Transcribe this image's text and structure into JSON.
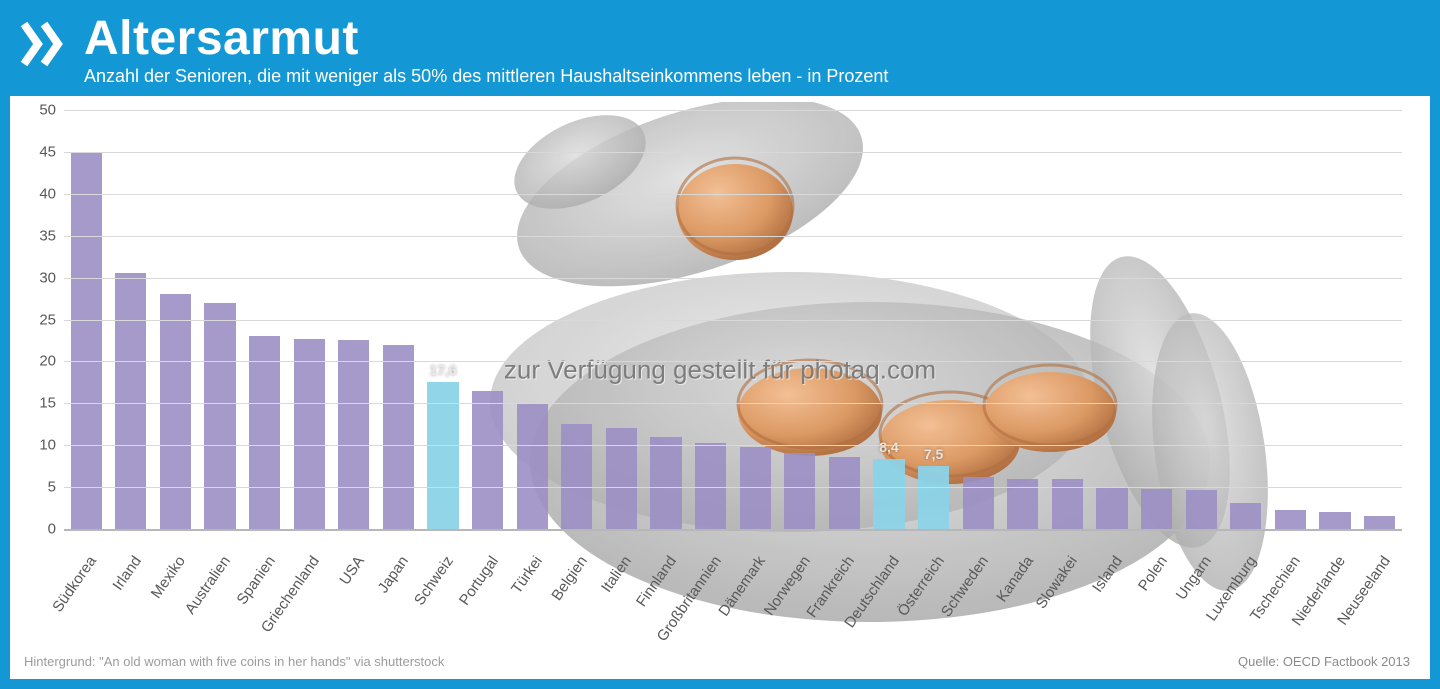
{
  "header": {
    "title": "Altersarmut",
    "subtitle": "Anzahl der Senioren, die mit weniger als 50% des mittleren Haushaltseinkommens leben - in Prozent",
    "header_bg": "#1498d5",
    "header_text_color": "#ffffff",
    "title_fontsize": 48,
    "subtitle_fontsize": 18
  },
  "logo": {
    "chevron_color": "#ffffff",
    "bg_color": "#1498d5"
  },
  "chart": {
    "type": "bar",
    "ylim": [
      0,
      50
    ],
    "ytick_step": 5,
    "yticks": [
      0,
      5,
      10,
      15,
      20,
      25,
      30,
      35,
      40,
      45,
      50
    ],
    "grid_color": "#d9d9d9",
    "baseline_color": "#b7b7b7",
    "axis_label_color": "#595959",
    "axis_label_fontsize": 15,
    "bar_width_ratio": 0.7,
    "default_bar_color": "#9b8fc4",
    "highlight_bar_color": "#8cd3e8",
    "background_color": "#ffffff",
    "value_label_color": "#e8e8e8",
    "value_label_fontsize": 14,
    "x_label_rotation_deg": -55,
    "categories": [
      "Südkorea",
      "Irland",
      "Mexiko",
      "Australien",
      "Spanien",
      "Griechenland",
      "USA",
      "Japan",
      "Schweiz",
      "Portugal",
      "Türkei",
      "Belgien",
      "Italien",
      "Finnland",
      "Großbritannien",
      "Dänemark",
      "Norwegen",
      "Frankreich",
      "Deutschland",
      "Österreich",
      "Schweden",
      "Kanada",
      "Slowakei",
      "Island",
      "Polen",
      "Ungarn",
      "Luxemburg",
      "Tschechien",
      "Niederlande",
      "Neuseeland"
    ],
    "values": [
      45.0,
      30.5,
      28.0,
      27.0,
      23.0,
      22.7,
      22.5,
      22.0,
      17.6,
      16.5,
      15.0,
      12.5,
      12.0,
      11.0,
      10.3,
      9.8,
      9.1,
      8.6,
      8.4,
      7.5,
      6.2,
      6.0,
      6.0,
      5.0,
      4.8,
      4.6,
      3.1,
      2.3,
      2.0,
      1.5
    ],
    "highlight_indices": [
      8,
      18,
      19
    ],
    "value_labels": {
      "8": "17,6",
      "18": "8,4",
      "19": "7,5"
    }
  },
  "watermark": {
    "text": "zur Verfügung gestellt für photaq.com",
    "color": "#7d7d7d",
    "fontsize": 26
  },
  "footer": {
    "left": "Hintergrund: \"An old woman with five coins in her hands\" via shutterstock",
    "right": "Quelle: OECD Factbook 2013",
    "color_left": "#9c9c9c",
    "color_right": "#8a8a8a",
    "fontsize": 13
  },
  "bg_illustration": {
    "description": "Elderly hands holding five bronze coins, desaturated grayscale with copper-tinted coins",
    "coin_color": "#d99055",
    "coin_shadow": "#a85f2c",
    "skin_color": "#bfbfbf",
    "skin_shadow": "#8f8f8f"
  }
}
